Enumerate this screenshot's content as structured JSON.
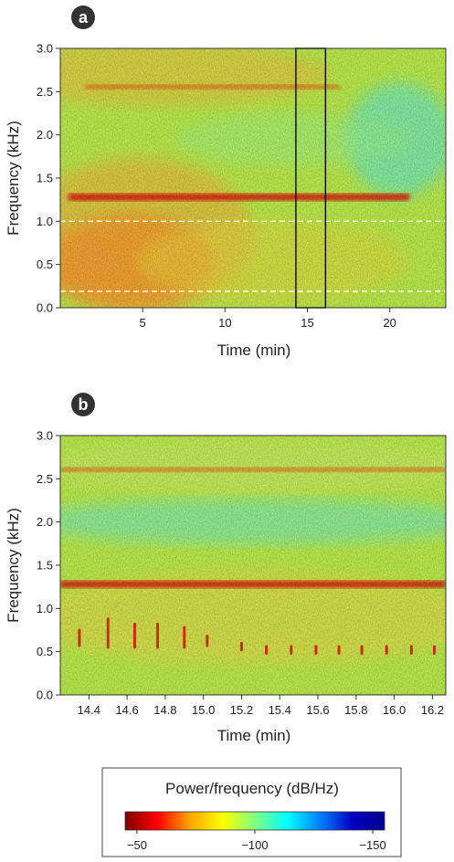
{
  "panels": [
    {
      "badge": "a",
      "chart_data": {
        "type": "heatmap",
        "title": "",
        "xlabel": "Time (min)",
        "ylabel": "Frequency (kHz)",
        "xlim": [
          0,
          23.4
        ],
        "ylim": [
          0,
          3.0
        ],
        "x_ticks": [
          5,
          10,
          15,
          20
        ],
        "x_tick_labels": [
          "5",
          "10",
          "15",
          "20"
        ],
        "y_ticks": [
          0,
          0.5,
          1.0,
          1.5,
          2.0,
          2.5,
          3.0
        ],
        "y_tick_labels": [
          "0.0",
          "0.5",
          "1.0",
          "1.5",
          "2.0",
          "2.5",
          "3.0"
        ],
        "bands": [
          {
            "freq_khz": 1.28,
            "x_start": 0.5,
            "x_end": 21.2,
            "power_db": -52
          },
          {
            "freq_khz": 2.55,
            "x_start": 1.5,
            "x_end": 17.0,
            "power_db": -70
          }
        ],
        "dashed_lines_khz": [
          1.0,
          0.19
        ],
        "highlight_window_min": [
          14.3,
          16.1
        ]
      }
    },
    {
      "badge": "b",
      "chart_data": {
        "type": "heatmap",
        "title": "",
        "xlabel": "Time (min)",
        "ylabel": "Frequency (kHz)",
        "xlim": [
          14.25,
          16.27
        ],
        "ylim": [
          0,
          3.0
        ],
        "x_ticks": [
          14.4,
          14.6,
          14.8,
          15.0,
          15.2,
          15.4,
          15.6,
          15.8,
          16.0,
          16.2
        ],
        "x_tick_labels": [
          "14.4",
          "14.6",
          "14.8",
          "15.0",
          "15.2",
          "15.4",
          "15.6",
          "15.8",
          "16.0",
          "16.2"
        ],
        "y_ticks": [
          0,
          0.5,
          1.0,
          1.5,
          2.0,
          2.5,
          3.0
        ],
        "y_tick_labels": [
          "0.0",
          "0.5",
          "1.0",
          "1.5",
          "2.0",
          "2.5",
          "3.0"
        ],
        "bands": [
          {
            "freq_khz": 1.28,
            "x_start": 14.25,
            "x_end": 16.27,
            "power_db": -55
          },
          {
            "freq_khz": 2.6,
            "x_start": 14.25,
            "x_end": 16.27,
            "power_db": -78
          }
        ],
        "calls": [
          {
            "time_min": 14.35,
            "freq_low_khz": 0.57,
            "freq_high_khz": 0.75
          },
          {
            "time_min": 14.5,
            "freq_low_khz": 0.55,
            "freq_high_khz": 0.88
          },
          {
            "time_min": 14.64,
            "freq_low_khz": 0.55,
            "freq_high_khz": 0.82
          },
          {
            "time_min": 14.76,
            "freq_low_khz": 0.55,
            "freq_high_khz": 0.82
          },
          {
            "time_min": 14.9,
            "freq_low_khz": 0.55,
            "freq_high_khz": 0.78
          },
          {
            "time_min": 15.02,
            "freq_low_khz": 0.57,
            "freq_high_khz": 0.68
          },
          {
            "time_min": 15.2,
            "freq_low_khz": 0.52,
            "freq_high_khz": 0.6
          },
          {
            "time_min": 15.33,
            "freq_low_khz": 0.48,
            "freq_high_khz": 0.56
          },
          {
            "time_min": 15.46,
            "freq_low_khz": 0.48,
            "freq_high_khz": 0.56
          },
          {
            "time_min": 15.59,
            "freq_low_khz": 0.48,
            "freq_high_khz": 0.56
          },
          {
            "time_min": 15.71,
            "freq_low_khz": 0.48,
            "freq_high_khz": 0.56
          },
          {
            "time_min": 15.83,
            "freq_low_khz": 0.48,
            "freq_high_khz": 0.56
          },
          {
            "time_min": 15.96,
            "freq_low_khz": 0.48,
            "freq_high_khz": 0.56
          },
          {
            "time_min": 16.09,
            "freq_low_khz": 0.48,
            "freq_high_khz": 0.56
          },
          {
            "time_min": 16.21,
            "freq_low_khz": 0.48,
            "freq_high_khz": 0.56
          }
        ]
      }
    }
  ],
  "colorbar": {
    "title": "Power/frequency (dB/Hz)",
    "range_db": [
      -45,
      -155
    ],
    "ticks": [
      -50,
      -100,
      -150
    ],
    "tick_labels": [
      "−50",
      "−100",
      "−150"
    ],
    "colormap": [
      "#7f0000",
      "#ff0000",
      "#ffa500",
      "#ffff00",
      "#80ff80",
      "#00ffff",
      "#0080ff",
      "#0000c0",
      "#00008f"
    ]
  },
  "colors": {
    "axis": "#333333",
    "badge_bg": "#333333",
    "badge_text": "#ffffff",
    "dashed_line": "#ffffff",
    "highlight_box": "#111111"
  }
}
